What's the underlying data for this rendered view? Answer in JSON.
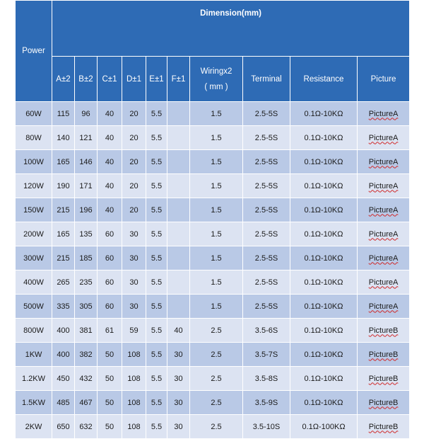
{
  "header": {
    "power": "Power",
    "dimension": "Dimension(mm)",
    "a": "A±2",
    "b": "B±2",
    "c": "C±1",
    "d": "D±1",
    "e": "E±1",
    "f": "F±1",
    "wiring_1": "Wiringx2",
    "wiring_2": "( mm )",
    "terminal": "Terminal",
    "resistance": "Resistance",
    "picture": "Picture"
  },
  "rows": [
    {
      "power": "60W",
      "a": "115",
      "b": "96",
      "c": "40",
      "d": "20",
      "e": "5.5",
      "f": "",
      "wiring": "1.5",
      "terminal": "2.5-5S",
      "resistance": "0.1Ω-10KΩ",
      "picture": "PictureA"
    },
    {
      "power": "80W",
      "a": "140",
      "b": "121",
      "c": "40",
      "d": "20",
      "e": "5.5",
      "f": "",
      "wiring": "1.5",
      "terminal": "2.5-5S",
      "resistance": "0.1Ω-10KΩ",
      "picture": "PictureA"
    },
    {
      "power": "100W",
      "a": "165",
      "b": "146",
      "c": "40",
      "d": "20",
      "e": "5.5",
      "f": "",
      "wiring": "1.5",
      "terminal": "2.5-5S",
      "resistance": "0.1Ω-10KΩ",
      "picture": "PictureA"
    },
    {
      "power": "120W",
      "a": "190",
      "b": "171",
      "c": "40",
      "d": "20",
      "e": "5.5",
      "f": "",
      "wiring": "1.5",
      "terminal": "2.5-5S",
      "resistance": "0.1Ω-10KΩ",
      "picture": "PictureA"
    },
    {
      "power": "150W",
      "a": "215",
      "b": "196",
      "c": "40",
      "d": "20",
      "e": "5.5",
      "f": "",
      "wiring": "1.5",
      "terminal": "2.5-5S",
      "resistance": "0.1Ω-10KΩ",
      "picture": "PictureA"
    },
    {
      "power": "200W",
      "a": "165",
      "b": "135",
      "c": "60",
      "d": "30",
      "e": "5.5",
      "f": "",
      "wiring": "1.5",
      "terminal": "2.5-5S",
      "resistance": "0.1Ω-10KΩ",
      "picture": "PictureA"
    },
    {
      "power": "300W",
      "a": "215",
      "b": "185",
      "c": "60",
      "d": "30",
      "e": "5.5",
      "f": "",
      "wiring": "1.5",
      "terminal": "2.5-5S",
      "resistance": "0.1Ω-10KΩ",
      "picture": "PictureA"
    },
    {
      "power": "400W",
      "a": "265",
      "b": "235",
      "c": "60",
      "d": "30",
      "e": "5.5",
      "f": "",
      "wiring": "1.5",
      "terminal": "2.5-5S",
      "resistance": "0.1Ω-10KΩ",
      "picture": "PictureA"
    },
    {
      "power": "500W",
      "a": "335",
      "b": "305",
      "c": "60",
      "d": "30",
      "e": "5.5",
      "f": "",
      "wiring": "1.5",
      "terminal": "2.5-5S",
      "resistance": "0.1Ω-10KΩ",
      "picture": "PictureA"
    },
    {
      "power": "800W",
      "a": "400",
      "b": "381",
      "c": "61",
      "d": "59",
      "e": "5.5",
      "f": "40",
      "wiring": "2.5",
      "terminal": "3.5-6S",
      "resistance": "0.1Ω-10KΩ",
      "picture": "PictureB"
    },
    {
      "power": "1KW",
      "a": "400",
      "b": "382",
      "c": "50",
      "d": "108",
      "e": "5.5",
      "f": "30",
      "wiring": "2.5",
      "terminal": "3.5-7S",
      "resistance": "0.1Ω-10KΩ",
      "picture": "PictureB"
    },
    {
      "power": "1.2KW",
      "a": "450",
      "b": "432",
      "c": "50",
      "d": "108",
      "e": "5.5",
      "f": "30",
      "wiring": "2.5",
      "terminal": "3.5-8S",
      "resistance": "0.1Ω-10KΩ",
      "picture": "PictureB"
    },
    {
      "power": "1.5KW",
      "a": "485",
      "b": "467",
      "c": "50",
      "d": "108",
      "e": "5.5",
      "f": "30",
      "wiring": "2.5",
      "terminal": "3.5-9S",
      "resistance": "0.1Ω-10KΩ",
      "picture": "PictureB"
    },
    {
      "power": "2KW",
      "a": "650",
      "b": "632",
      "c": "50",
      "d": "108",
      "e": "5.5",
      "f": "30",
      "wiring": "2.5",
      "terminal": "3.5-10S",
      "resistance": "0.1Ω-100KΩ",
      "picture": "PictureB"
    }
  ]
}
